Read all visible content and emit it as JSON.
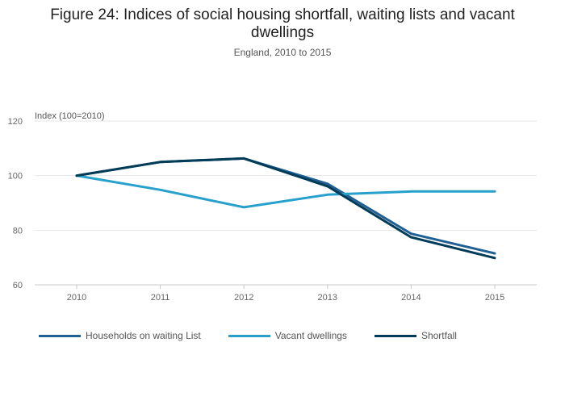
{
  "chart_data": {
    "type": "line",
    "title": "Figure 24: Indices of social housing shortfall, waiting lists and vacant dwellings",
    "subtitle": "England, 2010 to 2015",
    "ylabel": "Index (100=2010)",
    "xlabel": "",
    "categories": [
      "2010",
      "2011",
      "2012",
      "2013",
      "2014",
      "2015"
    ],
    "ylim": [
      60,
      120
    ],
    "yticks": [
      60,
      80,
      100,
      120
    ],
    "grid": true,
    "legend_position": "bottom-left",
    "series": [
      {
        "name": "Households on waiting List",
        "color": "#206095",
        "values": [
          100,
          105,
          106.3,
          97,
          78.7,
          71.5
        ]
      },
      {
        "name": "Vacant dwellings",
        "color": "#27a0cc",
        "values": [
          100,
          94.8,
          88.4,
          93,
          94.2,
          94.2
        ]
      },
      {
        "name": "Shortfall",
        "color": "#003c57",
        "values": [
          100,
          105,
          106.3,
          96.1,
          77.4,
          69.8
        ]
      }
    ]
  }
}
